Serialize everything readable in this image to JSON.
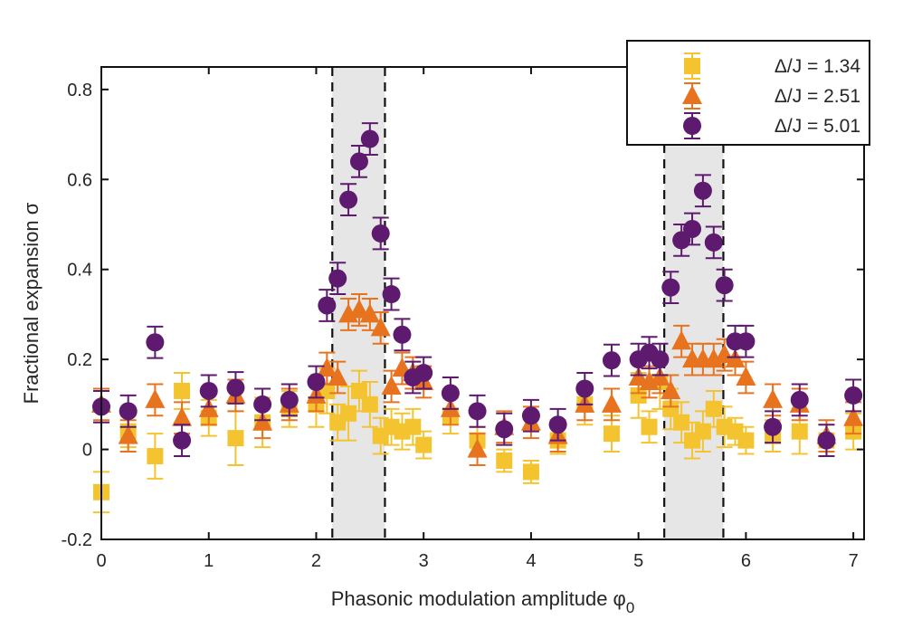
{
  "chart_data": {
    "type": "scatter",
    "title": "",
    "xlabel": "Phasonic modulation amplitude φ",
    "xlabel_sub": "0",
    "ylabel": "Fractional expansion σ",
    "xlim": [
      0,
      7.1
    ],
    "ylim": [
      -0.2,
      0.85
    ],
    "xticks": [
      0,
      1,
      2,
      3,
      4,
      5,
      6,
      7
    ],
    "xtick_labels": [
      "0",
      "1",
      "2",
      "3",
      "4",
      "5",
      "6",
      "7"
    ],
    "yticks": [
      -0.2,
      0,
      0.2,
      0.4,
      0.6,
      0.8
    ],
    "ytick_labels": [
      "-0.2",
      "0",
      "0.2",
      "0.4",
      "0.6",
      "0.8"
    ],
    "grid": false,
    "legend_position": "top-right",
    "shaded_regions": [
      {
        "x0": 2.15,
        "x1": 2.64
      },
      {
        "x0": 5.24,
        "x1": 5.79
      }
    ],
    "series": [
      {
        "name": "Δ/J = 1.34",
        "color": "#F4C430",
        "marker": "square",
        "x": [
          0,
          0.25,
          0.5,
          0.75,
          1,
          1.25,
          1.5,
          1.75,
          2,
          2.1,
          2.2,
          2.3,
          2.4,
          2.5,
          2.6,
          2.7,
          2.8,
          2.9,
          3,
          3.25,
          3.5,
          3.75,
          4,
          4.25,
          4.5,
          4.75,
          5,
          5.1,
          5.2,
          5.3,
          5.4,
          5.5,
          5.6,
          5.7,
          5.8,
          5.9,
          6,
          6.25,
          6.5,
          6.75,
          7
        ],
        "y": [
          -0.095,
          0.04,
          -0.015,
          0.13,
          0.07,
          0.025,
          0.06,
          0.09,
          0.1,
          0.13,
          0.06,
          0.08,
          0.13,
          0.1,
          0.03,
          0.05,
          0.04,
          0.05,
          0.01,
          0.075,
          0.02,
          -0.025,
          -0.05,
          0.02,
          0.1,
          0.035,
          0.12,
          0.05,
          0.15,
          0.09,
          0.06,
          0.02,
          0.04,
          0.09,
          0.05,
          0.04,
          0.02,
          0.03,
          0.04,
          0.02,
          0.04
        ],
        "err": [
          0.045,
          0.035,
          0.05,
          0.04,
          0.04,
          0.06,
          0.055,
          0.04,
          0.05,
          0.05,
          0.04,
          0.06,
          0.045,
          0.05,
          0.04,
          0.04,
          0.04,
          0.04,
          0.03,
          0.04,
          0.03,
          0.025,
          0.025,
          0.03,
          0.045,
          0.04,
          0.05,
          0.035,
          0.06,
          0.045,
          0.045,
          0.04,
          0.045,
          0.04,
          0.045,
          0.03,
          0.03,
          0.035,
          0.05,
          0.035,
          0.04
        ]
      },
      {
        "name": "Δ/J = 2.51",
        "color": "#E8731F",
        "marker": "triangle",
        "x": [
          0,
          0.25,
          0.5,
          0.75,
          1,
          1.25,
          1.5,
          1.75,
          2,
          2.1,
          2.2,
          2.3,
          2.4,
          2.5,
          2.6,
          2.7,
          2.8,
          2.9,
          3,
          3.25,
          3.5,
          3.75,
          4,
          4.25,
          4.5,
          4.75,
          5,
          5.1,
          5.2,
          5.3,
          5.4,
          5.5,
          5.6,
          5.7,
          5.8,
          5.9,
          6,
          6.25,
          6.5,
          6.75,
          7
        ],
        "y": [
          0.1,
          0.03,
          0.11,
          0.07,
          0.09,
          0.12,
          0.06,
          0.1,
          0.12,
          0.18,
          0.16,
          0.3,
          0.31,
          0.3,
          0.27,
          0.14,
          0.18,
          0.17,
          0.15,
          0.09,
          0,
          0.05,
          0.06,
          0.03,
          0.1,
          0.1,
          0.16,
          0.15,
          0.16,
          0.13,
          0.24,
          0.2,
          0.2,
          0.2,
          0.21,
          0.2,
          0.16,
          0.11,
          0.1,
          0.03,
          0.07
        ]
      },
      {
        "name": "Δ/J = 5.01",
        "color": "#5E1A6E",
        "marker": "circle",
        "x": [
          0,
          0.25,
          0.5,
          0.75,
          1,
          1.25,
          1.5,
          1.75,
          2,
          2.1,
          2.2,
          2.3,
          2.4,
          2.5,
          2.6,
          2.7,
          2.8,
          2.9,
          3,
          3.25,
          3.5,
          3.75,
          4,
          4.25,
          4.5,
          4.75,
          5,
          5.1,
          5.2,
          5.3,
          5.4,
          5.5,
          5.6,
          5.7,
          5.8,
          5.9,
          6,
          6.25,
          6.5,
          6.75,
          7
        ],
        "y": [
          0.095,
          0.085,
          0.238,
          0.02,
          0.13,
          0.137,
          0.1,
          0.11,
          0.15,
          0.32,
          0.38,
          0.555,
          0.64,
          0.69,
          0.48,
          0.345,
          0.255,
          0.16,
          0.17,
          0.125,
          0.085,
          0.045,
          0.075,
          0.055,
          0.135,
          0.198,
          0.2,
          0.215,
          0.2,
          0.36,
          0.465,
          0.49,
          0.575,
          0.46,
          0.365,
          0.24,
          0.24,
          0.05,
          0.11,
          0.02,
          0.12
        ]
      }
    ]
  }
}
